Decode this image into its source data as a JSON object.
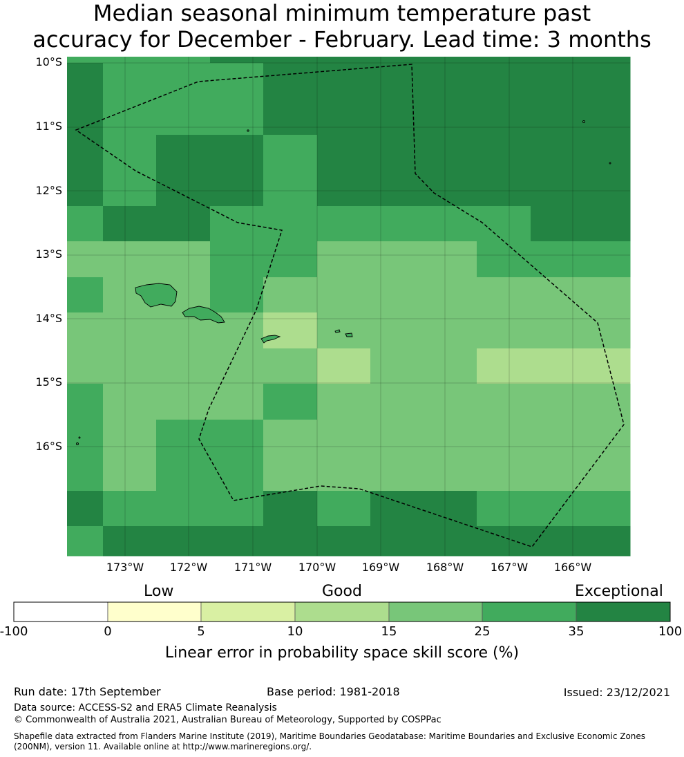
{
  "title_line1": "Median seasonal minimum temperature past",
  "title_line2": "accuracy for December - February. Lead time: 3 months",
  "map": {
    "lat_labels": [
      "10°S",
      "11°S",
      "12°S",
      "13°S",
      "14°S",
      "15°S",
      "16°S"
    ],
    "lon_labels": [
      "173°W",
      "172°W",
      "171°W",
      "170°W",
      "169°W",
      "168°W",
      "167°W",
      "166°W"
    ],
    "grid_rows": [
      "5556666666",
      "6555666666",
      "6566566666",
      "5665555556",
      "4445544455",
      "5445444444",
      "4444344444",
      "4444434433",
      "5444544444",
      "5455444444",
      "6555656655",
      "5666666666"
    ],
    "grid_palette_index_note": "",
    "colors": [
      "#ffffff",
      "#ffffcc",
      "#d9f0a3",
      "#addd8e",
      "#78c679",
      "#41ab5d",
      "#238443"
    ]
  },
  "colorbar": {
    "category_labels": [
      "Low",
      "Good",
      "Exceptional"
    ],
    "tick_labels": [
      "-100",
      "0",
      "5",
      "10",
      "15",
      "25",
      "35",
      "100"
    ],
    "label": "Linear error in probability space skill score (%)"
  },
  "footer": {
    "run_date": "Run date: 17th September",
    "base_period": "Base period: 1981-2018",
    "issued": "Issued: 23/12/2021",
    "data_source": "Data source: ACCESS-S2 and ERA5 Climate Reanalysis",
    "copyright": "© Commonwealth of Australia 2021, Australian Bureau of Meteorology, Supported by COSPPac",
    "shapefile_line1": "Shapefile data extracted from Flanders Marine Institute (2019), Maritime Boundaries Geodatabase: Maritime Boundaries and Exclusive Economic Zones",
    "shapefile_line2": "(200NM), version 11. Available online at http://www.marineregions.org/."
  }
}
